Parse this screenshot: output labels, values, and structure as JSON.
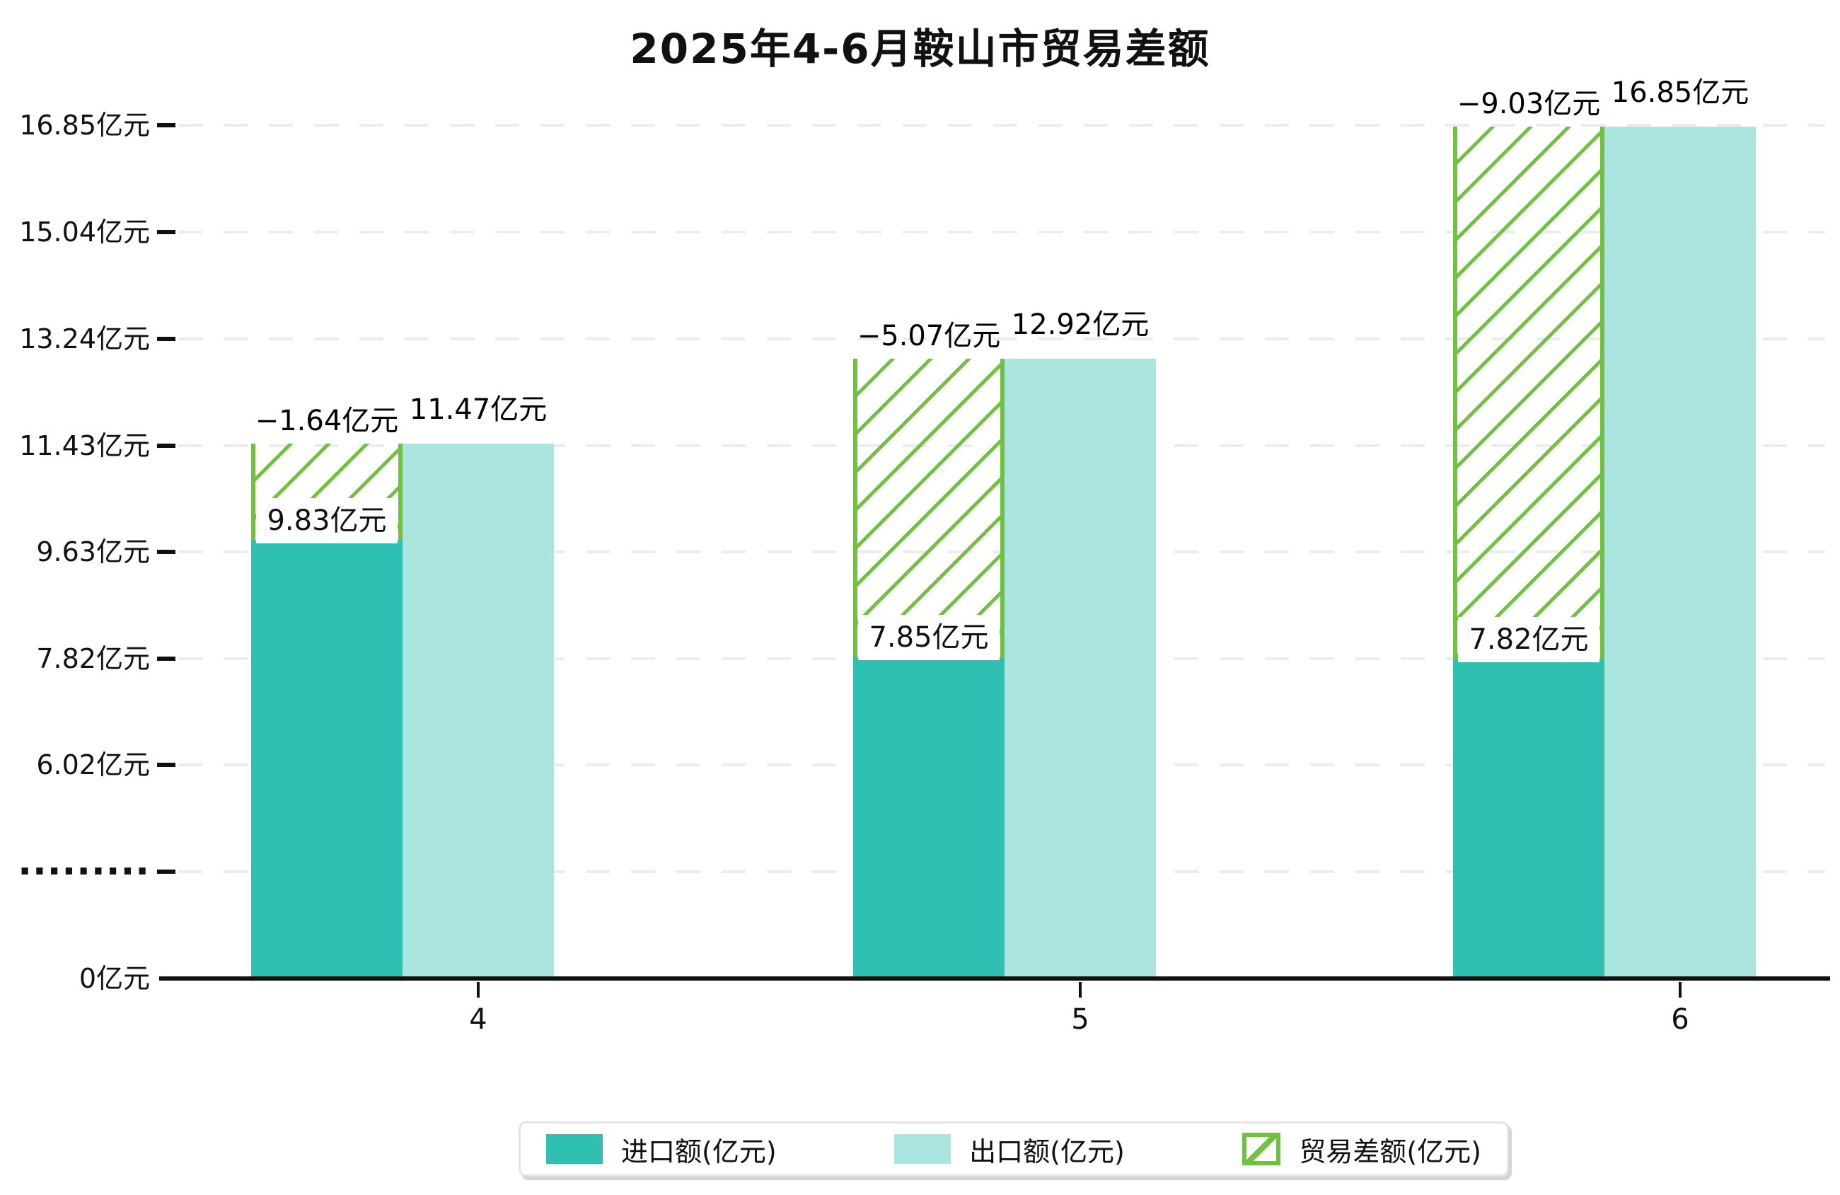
{
  "title": "2025年4-6月鞍山市贸易差额",
  "colors": {
    "import_bar": "#30c0b2",
    "export_bar": "#aae5df",
    "balance_hatch": "#70c13e",
    "gridline": "#ececec",
    "axis": "#111111"
  },
  "y_axis": {
    "unit": "亿元",
    "tick_labels": [
      "16.85亿元",
      "15.04亿元",
      "13.24亿元",
      "11.43亿元",
      "9.63亿元",
      "7.82亿元",
      "6.02亿元",
      "·········",
      "0亿元"
    ]
  },
  "x_axis": {
    "tick_labels": [
      "4",
      "5",
      "6"
    ]
  },
  "legend": {
    "items": [
      {
        "label": "进口额(亿元)",
        "swatch": "import"
      },
      {
        "label": "出口额(亿元)",
        "swatch": "export"
      },
      {
        "label": "贸易差额(亿元)",
        "swatch": "balance"
      }
    ]
  },
  "chart_data": {
    "type": "bar",
    "title": "2025年4-6月鞍山市贸易差额",
    "categories": [
      "4",
      "5",
      "6"
    ],
    "series": [
      {
        "name": "进口额(亿元)",
        "role": "import",
        "values": [
          9.83,
          7.85,
          7.82
        ],
        "value_labels": [
          "9.83亿元",
          "7.85亿元",
          "7.82亿元"
        ]
      },
      {
        "name": "出口额(亿元)",
        "role": "export",
        "values": [
          11.47,
          12.92,
          16.85
        ],
        "value_labels": [
          "11.47亿元",
          "12.92亿元",
          "16.85亿元"
        ]
      },
      {
        "name": "贸易差额(亿元)",
        "role": "balance",
        "values": [
          -1.64,
          -5.07,
          -9.03
        ],
        "value_labels": [
          "−1.64亿元",
          "−5.07亿元",
          "−9.03亿元"
        ]
      }
    ],
    "y_ticks": [
      0,
      6.02,
      7.82,
      9.63,
      11.43,
      13.24,
      15.04,
      16.85
    ],
    "y_axis_break": {
      "from": 0,
      "to": 6.02,
      "marker": "·········"
    },
    "ylim": [
      0,
      16.85
    ],
    "grid": true,
    "legend_position": "bottom"
  }
}
